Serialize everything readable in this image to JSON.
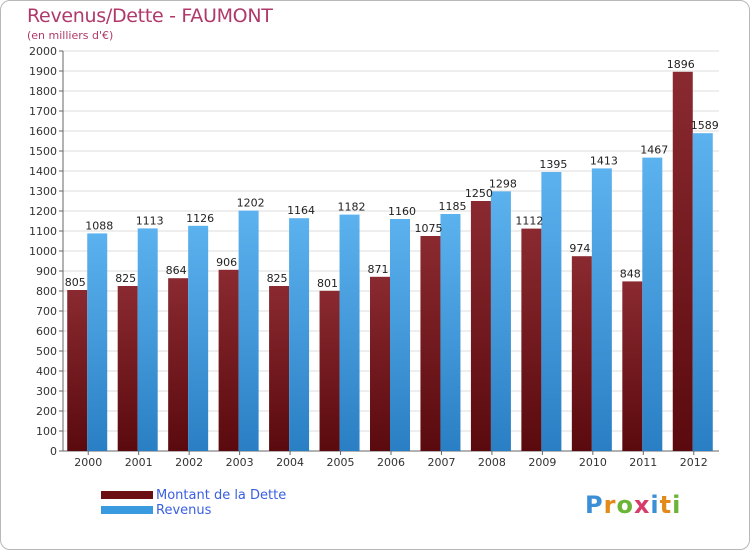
{
  "header": {
    "title": "Revenus/Dette - FAUMONT",
    "subtitle": "(en milliers d'€)"
  },
  "colors": {
    "dette": "#7a1a22",
    "revenus": "#3a9ae0",
    "title": "#b0386a",
    "legend_text": "#3a5fe0"
  },
  "legend": {
    "items": [
      {
        "label": "Montant de la Dette",
        "color": "#6b0f12"
      },
      {
        "label": "Revenus",
        "color": "#3a9ae0"
      }
    ]
  },
  "logo": {
    "text": "Proxiti"
  },
  "chart_data": {
    "type": "bar",
    "title": "Revenus/Dette - FAUMONT",
    "subtitle": "(en milliers d'€)",
    "xlabel": "",
    "ylabel": "",
    "ylim": [
      0,
      2000
    ],
    "ytick_step": 100,
    "grid": true,
    "legend_position": "bottom-left",
    "categories": [
      "2000",
      "2001",
      "2002",
      "2003",
      "2004",
      "2005",
      "2006",
      "2007",
      "2008",
      "2009",
      "2010",
      "2011",
      "2012"
    ],
    "series": [
      {
        "name": "Montant de la Dette",
        "values": [
          805,
          825,
          864,
          906,
          825,
          801,
          871,
          1075,
          1250,
          1112,
          974,
          848,
          1896
        ],
        "labels": [
          "805",
          "825",
          "864",
          "906",
          "825",
          "801",
          "871",
          "1075",
          "1250",
          "1112",
          "974",
          "848",
          "1896"
        ]
      },
      {
        "name": "Revenus",
        "values": [
          1088,
          1113,
          1126,
          1202,
          1164,
          1182,
          1160,
          1185,
          1298,
          1395,
          1413,
          1467,
          1589
        ],
        "labels": [
          "1088",
          "1113",
          "1126",
          "1202",
          "1164",
          "1182",
          "1160",
          "1185",
          "1298",
          "1395",
          "1413",
          "1467",
          "1589"
        ]
      }
    ]
  }
}
